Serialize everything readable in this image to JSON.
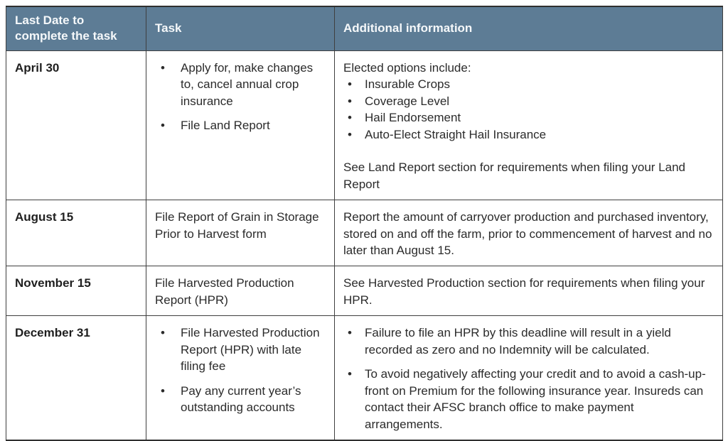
{
  "glyphs": {
    "bullet": "•"
  },
  "colors": {
    "header_bg": "#5d7c95",
    "header_text": "#f5f8fa",
    "body_text": "#2b2b2b",
    "border": "#3f3f3f"
  },
  "header": {
    "col1": "Last Date to complete the task",
    "col2": "Task",
    "col3": "Additional information"
  },
  "rows": [
    {
      "date": "April 30",
      "task_bullets": [
        "Apply for, make changes to, cancel annual crop insurance",
        "File Land Report"
      ],
      "info_intro": "Elected options include:",
      "info_bullets": [
        "Insurable Crops",
        "Coverage Level",
        "Hail Endorsement",
        "Auto-Elect Straight Hail Insurance"
      ],
      "info_outro": "See Land Report section for requirements when filing your Land Report"
    },
    {
      "date": "August 15",
      "task_text": "File Report of Grain in Storage Prior to Harvest form",
      "info_text": "Report the amount of carryover production and purchased inventory, stored on and off the farm, prior to commencement of harvest and no later than August 15."
    },
    {
      "date": "November 15",
      "task_text": "File Harvested Production Report (HPR)",
      "info_text": "See Harvested Production section for requirements when filing your HPR."
    },
    {
      "date": "December 31",
      "task_bullets": [
        "File Harvested Production Report (HPR) with late filing fee",
        "Pay any current year’s outstanding accounts"
      ],
      "info_bullets": [
        "Failure to file an HPR by this deadline will result in a yield recorded as zero and no Indemnity will be calculated.",
        "To avoid negatively affecting your credit and to avoid a cash-up-front on Premium for the following insurance year. Insureds can contact their AFSC branch office to make payment arrangements."
      ]
    }
  ]
}
